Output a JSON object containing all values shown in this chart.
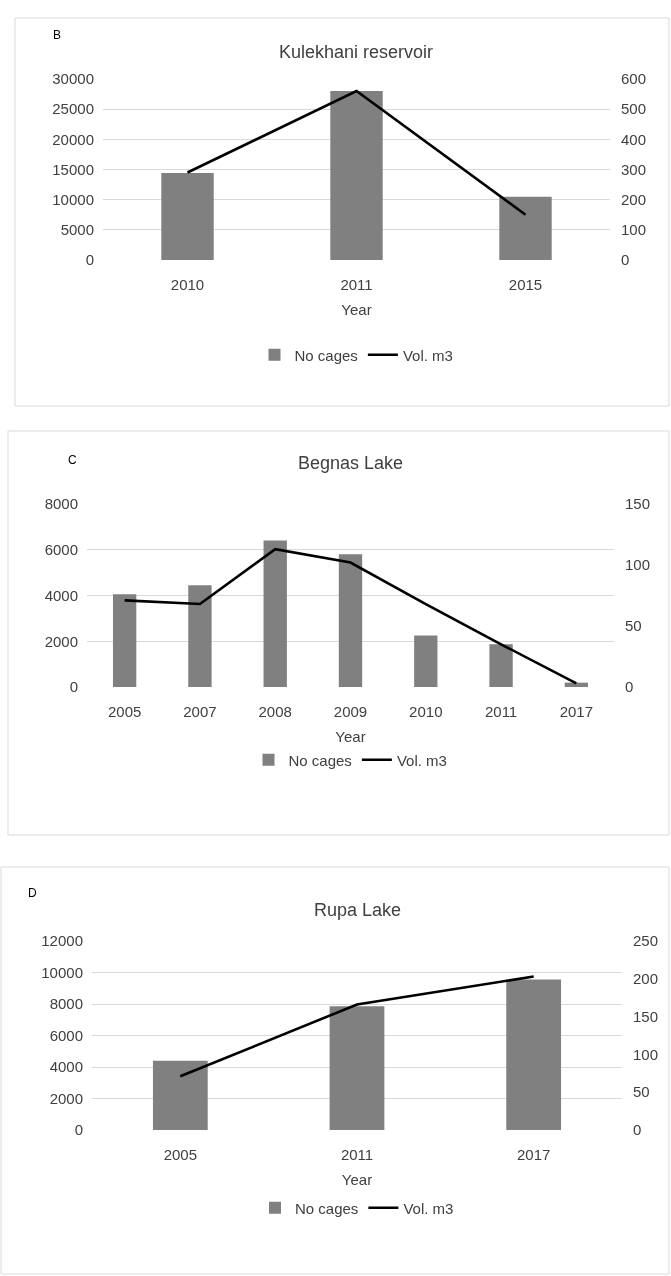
{
  "chart_data": [
    {
      "type": "bar",
      "title": "Kulekhani reservoir",
      "xlabel": "Year",
      "annotations": [
        "B"
      ],
      "categories": [
        "2010",
        "2011",
        "2015"
      ],
      "series": [
        {
          "name": "No cages",
          "color": "#808080",
          "values": [
            14400,
            28000,
            10500
          ]
        },
        {
          "name": "Vol. m3",
          "type": "line",
          "color": "#000000",
          "axis": "y2",
          "values": [
            290,
            560,
            150
          ]
        }
      ],
      "ylim": [
        0,
        30000
      ],
      "yticks": [
        0,
        5000,
        10000,
        15000,
        20000,
        25000,
        30000
      ],
      "y2lim": [
        0,
        600
      ],
      "y2ticks": [
        0,
        100,
        200,
        300,
        400,
        500,
        600
      ],
      "grid": "y",
      "legend": "bottom",
      "marker": "none",
      "line_style": "solid"
    },
    {
      "type": "bar",
      "title": "Begnas Lake",
      "xlabel": "Year",
      "annotations": [
        "C"
      ],
      "categories": [
        "2005",
        "2007",
        "2008",
        "2009",
        "2010",
        "2011",
        "2017"
      ],
      "series": [
        {
          "name": "No cages",
          "color": "#808080",
          "values": [
            4050,
            4450,
            6400,
            5800,
            2250,
            1870,
            190
          ]
        },
        {
          "name": "Vol. m3",
          "type": "line",
          "color": "#000000",
          "axis": "y2",
          "values": [
            71,
            68,
            113,
            102,
            68,
            35,
            3
          ]
        }
      ],
      "ylim": [
        0,
        8000
      ],
      "yticks": [
        0,
        2000,
        4000,
        6000,
        8000
      ],
      "y2lim": [
        0,
        150
      ],
      "y2ticks": [
        0,
        50,
        100,
        150
      ],
      "grid": "y",
      "legend": "bottom",
      "marker": "none",
      "line_style": "solid"
    },
    {
      "type": "bar",
      "title": "Rupa Lake",
      "xlabel": "Year",
      "annotations": [
        "D"
      ],
      "categories": [
        "2005",
        "2011",
        "2017"
      ],
      "series": [
        {
          "name": "No cages",
          "color": "#808080",
          "values": [
            4400,
            7850,
            9550
          ]
        },
        {
          "name": "Vol. m3",
          "type": "line",
          "color": "#000000",
          "axis": "y2",
          "values": [
            71,
            166,
            203
          ]
        }
      ],
      "ylim": [
        0,
        12000
      ],
      "yticks": [
        0,
        2000,
        4000,
        6000,
        8000,
        10000,
        12000
      ],
      "y2lim": [
        0,
        250
      ],
      "y2ticks": [
        0,
        50,
        100,
        150,
        200,
        250
      ],
      "grid": "y",
      "legend": "bottom",
      "marker": "none",
      "line_style": "solid"
    }
  ]
}
